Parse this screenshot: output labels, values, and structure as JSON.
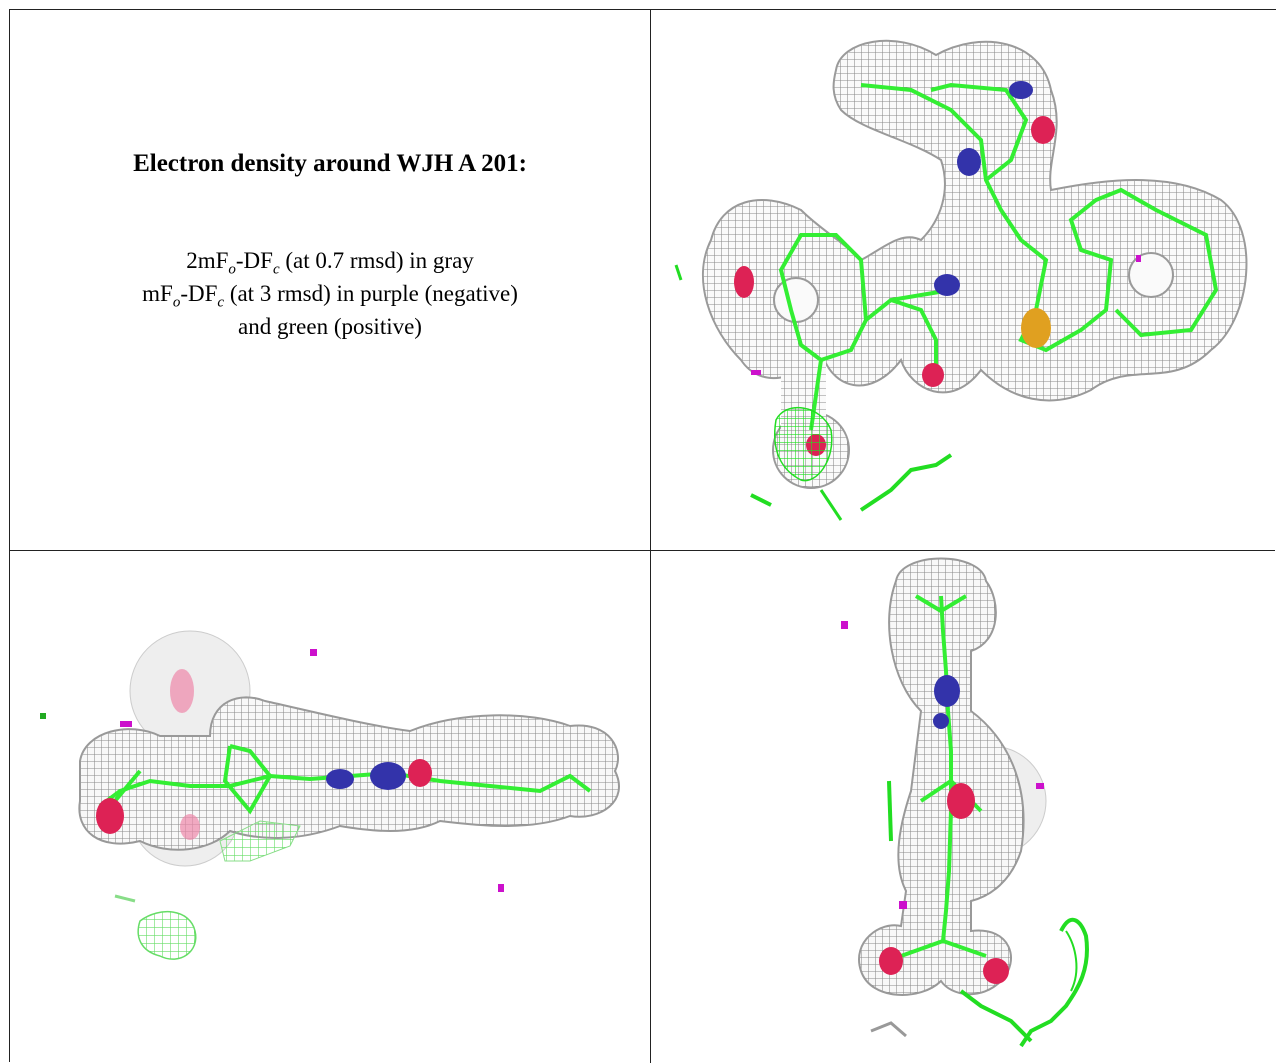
{
  "title": "Electron density around WJH A 201:",
  "legend": {
    "line1": {
      "prefix": "2mF",
      "sub1": "o",
      "mid": "-DF",
      "sub2": "c",
      "suffix": " (at 0.7 rmsd) in gray"
    },
    "line2": {
      "prefix": "mF",
      "sub1": "o",
      "mid": "-DF",
      "sub2": "c",
      "suffix": " (at 3 rmsd) in purple (negative)"
    },
    "line3": "and green (positive)"
  },
  "colors": {
    "mesh_2fofc": "#9a9a9a",
    "ligand_carbon": "#33ee33",
    "nitrogen": "#3333aa",
    "oxygen": "#dd2255",
    "sulfur": "#e0a020",
    "diff_negative": "#cc11cc",
    "diff_positive": "#22dd22"
  },
  "views": [
    "front-view",
    "side-view",
    "end-view"
  ]
}
